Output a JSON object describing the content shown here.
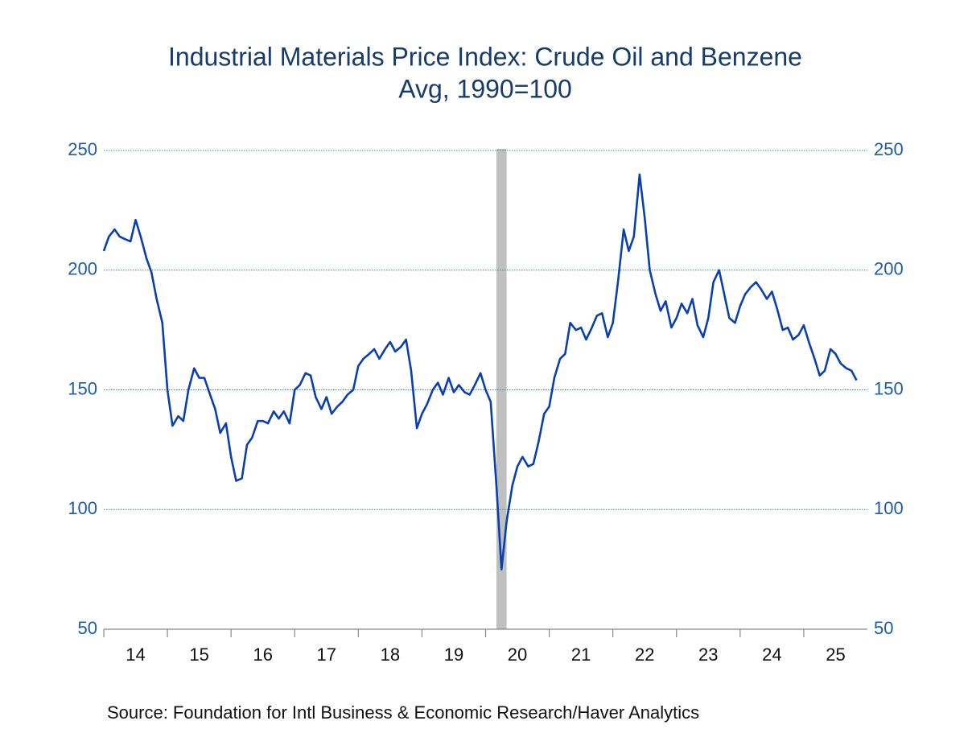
{
  "chart_data": {
    "type": "line",
    "title": "Industrial Materials Price Index: Crude Oil and Benzene",
    "subtitle": "Avg, 1990=100",
    "source": "Source:  Foundation for Intl Business & Economic Research/Haver Analytics",
    "xlim": [
      2014,
      2026
    ],
    "xticks": [
      {
        "value": 2014.5,
        "label": "14"
      },
      {
        "value": 2015.5,
        "label": "15"
      },
      {
        "value": 2016.5,
        "label": "16"
      },
      {
        "value": 2017.5,
        "label": "17"
      },
      {
        "value": 2018.5,
        "label": "18"
      },
      {
        "value": 2019.5,
        "label": "19"
      },
      {
        "value": 2020.5,
        "label": "20"
      },
      {
        "value": 2021.5,
        "label": "21"
      },
      {
        "value": 2022.5,
        "label": "22"
      },
      {
        "value": 2023.5,
        "label": "23"
      },
      {
        "value": 2024.5,
        "label": "24"
      },
      {
        "value": 2025.5,
        "label": "25"
      }
    ],
    "ylim": [
      50,
      250
    ],
    "yticks": [
      50,
      100,
      150,
      200,
      250
    ],
    "grid": true,
    "right_axis": true,
    "shaded": [
      [
        2020.17,
        2020.33
      ]
    ],
    "shade_color": "#c0c0c0",
    "x": [
      2014.0,
      2014.08,
      2014.17,
      2014.25,
      2014.33,
      2014.42,
      2014.5,
      2014.58,
      2014.67,
      2014.75,
      2014.83,
      2014.92,
      2015.0,
      2015.08,
      2015.17,
      2015.25,
      2015.33,
      2015.42,
      2015.5,
      2015.58,
      2015.67,
      2015.75,
      2015.83,
      2015.92,
      2016.0,
      2016.08,
      2016.17,
      2016.25,
      2016.33,
      2016.42,
      2016.5,
      2016.58,
      2016.67,
      2016.75,
      2016.83,
      2016.92,
      2017.0,
      2017.08,
      2017.17,
      2017.25,
      2017.33,
      2017.42,
      2017.5,
      2017.58,
      2017.67,
      2017.75,
      2017.83,
      2017.92,
      2018.0,
      2018.08,
      2018.17,
      2018.25,
      2018.33,
      2018.42,
      2018.5,
      2018.58,
      2018.67,
      2018.75,
      2018.83,
      2018.92,
      2019.0,
      2019.08,
      2019.17,
      2019.25,
      2019.33,
      2019.42,
      2019.5,
      2019.58,
      2019.67,
      2019.75,
      2019.83,
      2019.92,
      2020.0,
      2020.08,
      2020.17,
      2020.25,
      2020.33,
      2020.42,
      2020.5,
      2020.58,
      2020.67,
      2020.75,
      2020.83,
      2020.92,
      2021.0,
      2021.08,
      2021.17,
      2021.25,
      2021.33,
      2021.42,
      2021.5,
      2021.58,
      2021.67,
      2021.75,
      2021.83,
      2021.92,
      2022.0,
      2022.08,
      2022.17,
      2022.25,
      2022.33,
      2022.42,
      2022.5,
      2022.58,
      2022.67,
      2022.75,
      2022.83,
      2022.92,
      2023.0,
      2023.08,
      2023.17,
      2023.25,
      2023.33,
      2023.42,
      2023.5,
      2023.58,
      2023.67,
      2023.75,
      2023.83,
      2023.92,
      2024.0,
      2024.08,
      2024.17,
      2024.25,
      2024.33,
      2024.42,
      2024.5,
      2024.58,
      2024.67,
      2024.75,
      2024.83,
      2024.92,
      2025.0,
      2025.08,
      2025.17,
      2025.25,
      2025.33,
      2025.42,
      2025.5,
      2025.58,
      2025.67,
      2025.75,
      2025.83
    ],
    "series": [
      {
        "name": "Crude Oil and Benzene",
        "color": "#0a3fb0",
        "values": [
          208,
          214,
          217,
          214,
          213,
          212,
          221,
          214,
          205,
          199,
          188,
          178,
          150,
          135,
          139,
          137,
          150,
          159,
          155,
          155,
          148,
          142,
          132,
          136,
          122,
          112,
          113,
          127,
          130,
          137,
          137,
          136,
          141,
          138,
          141,
          136,
          150,
          152,
          157,
          156,
          147,
          142,
          147,
          140,
          143,
          145,
          148,
          150,
          160,
          163,
          165,
          167,
          163,
          167,
          170,
          166,
          168,
          171,
          158,
          134,
          140,
          144,
          150,
          153,
          148,
          155,
          149,
          152,
          149,
          148,
          152,
          157,
          150,
          145,
          110,
          75,
          95,
          110,
          118,
          122,
          118,
          119,
          128,
          140,
          143,
          155,
          163,
          165,
          178,
          175,
          176,
          171,
          176,
          181,
          182,
          172,
          178,
          195,
          217,
          208,
          214,
          240,
          222,
          200,
          190,
          183,
          187,
          176,
          180,
          186,
          182,
          188,
          177,
          172,
          180,
          195,
          200,
          190,
          180,
          178,
          185,
          190,
          193,
          195,
          192,
          188,
          191,
          184,
          175,
          176,
          171,
          173,
          177,
          170,
          163,
          156,
          158,
          167,
          165,
          161,
          159,
          158,
          154
        ]
      }
    ]
  }
}
